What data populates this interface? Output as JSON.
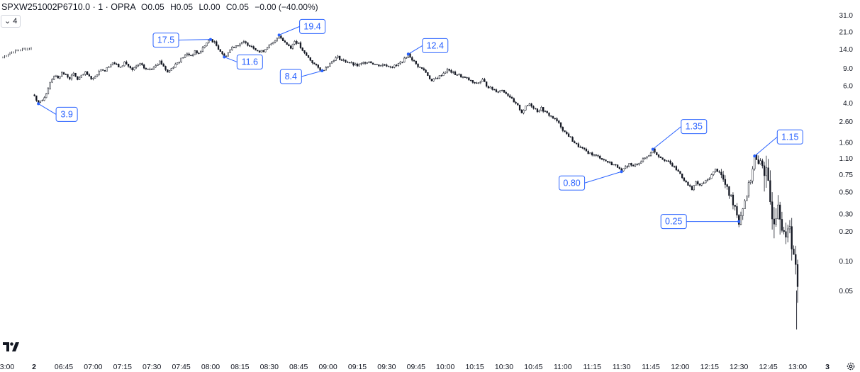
{
  "header": {
    "symbol": "SPXW251002P6710.0 · 1 · OPRA",
    "open_label": "O",
    "open": "0.05",
    "high_label": "H",
    "high": "0.05",
    "low_label": "L",
    "low": "0.00",
    "close_label": "C",
    "close": "0.05",
    "change": "−0.00 (−40.00%)"
  },
  "indicators_toggle": {
    "icon": "chevron-down-icon",
    "count": "4"
  },
  "logo": "tradingview-logo",
  "settings_icon": "gear-icon",
  "colors": {
    "candles": "#131722",
    "annotation": "#2962ff",
    "axis_text": "#131722"
  },
  "chart_data": {
    "type": "candlestick",
    "y_scale": "log",
    "ylim": [
      0.012,
      40
    ],
    "y_ticks": [
      "31.0",
      "21.0",
      "14.0",
      "9.0",
      "6.0",
      "4.0",
      "2.60",
      "1.60",
      "1.10",
      "0.75",
      "0.50",
      "0.30",
      "0.20",
      "0.10",
      "0.05"
    ],
    "y_tick_values": [
      31,
      21,
      14,
      9,
      6,
      4,
      2.6,
      1.6,
      1.1,
      0.75,
      0.5,
      0.3,
      0.2,
      0.1,
      0.05
    ],
    "x_ticks": [
      "3:00",
      "2",
      "06:45",
      "07:00",
      "07:15",
      "07:30",
      "07:45",
      "08:00",
      "08:15",
      "08:30",
      "08:45",
      "09:00",
      "09:15",
      "09:30",
      "09:45",
      "10:00",
      "10:15",
      "10:30",
      "10:45",
      "11:00",
      "11:15",
      "11:30",
      "11:45",
      "12:00",
      "12:15",
      "12:30",
      "12:45",
      "13:00",
      "3"
    ],
    "x_tick_minutes": [
      -189,
      -35,
      405,
      420,
      435,
      450,
      465,
      480,
      495,
      510,
      525,
      540,
      555,
      570,
      585,
      600,
      615,
      630,
      645,
      660,
      675,
      690,
      705,
      720,
      735,
      750,
      765,
      780,
      810
    ],
    "x_tick_bold": [
      false,
      true,
      false,
      false,
      false,
      false,
      false,
      false,
      false,
      false,
      false,
      false,
      false,
      false,
      false,
      false,
      false,
      false,
      false,
      false,
      false,
      false,
      false,
      false,
      false,
      false,
      false,
      false,
      true
    ],
    "prev_session": {
      "from_minute": -188,
      "to_minute": -180,
      "path": [
        [
          -188,
          11.5
        ],
        [
          -186,
          12.8
        ],
        [
          -184,
          13.5
        ],
        [
          -182,
          14.0
        ],
        [
          -180,
          14.2
        ]
      ]
    },
    "price_path": [
      [
        390,
        4.8
      ],
      [
        391,
        4.3
      ],
      [
        392,
        3.9
      ],
      [
        394,
        4.2
      ],
      [
        396,
        5.0
      ],
      [
        398,
        6.5
      ],
      [
        400,
        7.5
      ],
      [
        402,
        7.2
      ],
      [
        404,
        8.0
      ],
      [
        406,
        7.6
      ],
      [
        408,
        7.1
      ],
      [
        410,
        7.8
      ],
      [
        412,
        6.9
      ],
      [
        414,
        7.4
      ],
      [
        416,
        8.0
      ],
      [
        418,
        7.3
      ],
      [
        420,
        7.0
      ],
      [
        422,
        7.9
      ],
      [
        424,
        8.8
      ],
      [
        426,
        8.4
      ],
      [
        428,
        9.5
      ],
      [
        430,
        10.2
      ],
      [
        432,
        9.6
      ],
      [
        434,
        9.0
      ],
      [
        436,
        10.3
      ],
      [
        438,
        9.4
      ],
      [
        440,
        8.5
      ],
      [
        442,
        9.3
      ],
      [
        444,
        9.8
      ],
      [
        446,
        9.0
      ],
      [
        448,
        8.6
      ],
      [
        450,
        8.9
      ],
      [
        452,
        9.8
      ],
      [
        454,
        10.5
      ],
      [
        456,
        9.4
      ],
      [
        458,
        8.1
      ],
      [
        460,
        8.9
      ],
      [
        462,
        9.8
      ],
      [
        464,
        10.6
      ],
      [
        466,
        11.6
      ],
      [
        468,
        12.4
      ],
      [
        470,
        12.0
      ],
      [
        472,
        13.1
      ],
      [
        474,
        12.6
      ],
      [
        476,
        14.3
      ],
      [
        478,
        16.1
      ],
      [
        480,
        17.5
      ],
      [
        482,
        16.2
      ],
      [
        484,
        14.2
      ],
      [
        486,
        12.6
      ],
      [
        487,
        11.6
      ],
      [
        489,
        12.8
      ],
      [
        491,
        14.6
      ],
      [
        493,
        15.2
      ],
      [
        495,
        15.8
      ],
      [
        497,
        16.3
      ],
      [
        499,
        15.6
      ],
      [
        501,
        15.0
      ],
      [
        503,
        14.0
      ],
      [
        505,
        13.0
      ],
      [
        507,
        13.4
      ],
      [
        509,
        14.8
      ],
      [
        511,
        15.4
      ],
      [
        513,
        16.8
      ],
      [
        515,
        19.4
      ],
      [
        517,
        17.2
      ],
      [
        519,
        15.6
      ],
      [
        521,
        14.6
      ],
      [
        523,
        16.8
      ],
      [
        525,
        15.8
      ],
      [
        527,
        13.2
      ],
      [
        529,
        12.0
      ],
      [
        531,
        10.8
      ],
      [
        533,
        9.8
      ],
      [
        535,
        9.0
      ],
      [
        537,
        8.4
      ],
      [
        539,
        9.2
      ],
      [
        541,
        10.0
      ],
      [
        543,
        11.0
      ],
      [
        545,
        11.6
      ],
      [
        547,
        10.8
      ],
      [
        549,
        10.5
      ],
      [
        551,
        10.2
      ],
      [
        553,
        9.7
      ],
      [
        555,
        9.5
      ],
      [
        557,
        9.8
      ],
      [
        559,
        10.3
      ],
      [
        561,
        10.5
      ],
      [
        563,
        10.0
      ],
      [
        565,
        9.6
      ],
      [
        567,
        9.6
      ],
      [
        569,
        9.7
      ],
      [
        571,
        9.4
      ],
      [
        573,
        9.3
      ],
      [
        575,
        9.5
      ],
      [
        577,
        10.2
      ],
      [
        579,
        11.0
      ],
      [
        581,
        12.4
      ],
      [
        583,
        11.0
      ],
      [
        585,
        9.8
      ],
      [
        587,
        9.0
      ],
      [
        589,
        8.6
      ],
      [
        591,
        7.6
      ],
      [
        593,
        6.6
      ],
      [
        595,
        7.0
      ],
      [
        597,
        7.4
      ],
      [
        599,
        8.0
      ],
      [
        601,
        8.6
      ],
      [
        603,
        8.2
      ],
      [
        605,
        7.8
      ],
      [
        607,
        7.6
      ],
      [
        609,
        7.2
      ],
      [
        611,
        7.0
      ],
      [
        613,
        6.6
      ],
      [
        615,
        6.2
      ],
      [
        617,
        6.4
      ],
      [
        619,
        6.8
      ],
      [
        621,
        6.0
      ],
      [
        623,
        5.6
      ],
      [
        625,
        5.4
      ],
      [
        627,
        5.2
      ],
      [
        629,
        5.4
      ],
      [
        631,
        5.0
      ],
      [
        633,
        4.6
      ],
      [
        635,
        4.0
      ],
      [
        637,
        3.7
      ],
      [
        639,
        3.2
      ],
      [
        641,
        3.6
      ],
      [
        643,
        3.9
      ],
      [
        645,
        3.6
      ],
      [
        647,
        3.3
      ],
      [
        649,
        3.5
      ],
      [
        651,
        3.2
      ],
      [
        653,
        3.0
      ],
      [
        655,
        2.8
      ],
      [
        657,
        2.6
      ],
      [
        659,
        2.3
      ],
      [
        661,
        2.0
      ],
      [
        663,
        1.85
      ],
      [
        665,
        1.65
      ],
      [
        667,
        1.5
      ],
      [
        669,
        1.4
      ],
      [
        671,
        1.32
      ],
      [
        673,
        1.25
      ],
      [
        675,
        1.2
      ],
      [
        677,
        1.15
      ],
      [
        679,
        1.12
      ],
      [
        681,
        1.05
      ],
      [
        683,
        1.0
      ],
      [
        685,
        0.96
      ],
      [
        687,
        0.92
      ],
      [
        689,
        0.88
      ],
      [
        690,
        0.8
      ],
      [
        692,
        0.88
      ],
      [
        694,
        0.96
      ],
      [
        696,
        0.9
      ],
      [
        698,
        0.97
      ],
      [
        700,
        1.02
      ],
      [
        702,
        1.1
      ],
      [
        704,
        1.18
      ],
      [
        706,
        1.35
      ],
      [
        708,
        1.2
      ],
      [
        710,
        1.12
      ],
      [
        712,
        1.06
      ],
      [
        714,
        1.0
      ],
      [
        716,
        0.92
      ],
      [
        718,
        0.84
      ],
      [
        720,
        0.76
      ],
      [
        722,
        0.66
      ],
      [
        724,
        0.58
      ],
      [
        726,
        0.54
      ],
      [
        728,
        0.62
      ],
      [
        730,
        0.58
      ],
      [
        732,
        0.62
      ],
      [
        734,
        0.66
      ],
      [
        736,
        0.74
      ],
      [
        738,
        0.84
      ],
      [
        740,
        0.8
      ],
      [
        742,
        0.66
      ],
      [
        744,
        0.52
      ],
      [
        746,
        0.44
      ],
      [
        748,
        0.36
      ],
      [
        750,
        0.25
      ],
      [
        752,
        0.35
      ],
      [
        754,
        0.48
      ],
      [
        756,
        0.68
      ],
      [
        758,
        1.15
      ],
      [
        760,
        0.9
      ],
      [
        762,
        1.1
      ],
      [
        764,
        0.7
      ],
      [
        766,
        0.4
      ],
      [
        768,
        0.3
      ],
      [
        770,
        0.45
      ],
      [
        772,
        0.28
      ],
      [
        774,
        0.14
      ],
      [
        776,
        0.25
      ],
      [
        778,
        0.12
      ],
      [
        780,
        0.05
      ]
    ],
    "annotations": [
      {
        "label": "3.9",
        "minute": 392,
        "price": 3.9
      },
      {
        "label": "17.5",
        "minute": 480,
        "price": 17.5
      },
      {
        "label": "11.6",
        "minute": 487,
        "price": 11.6
      },
      {
        "label": "19.4",
        "minute": 515,
        "price": 19.4
      },
      {
        "label": "8.4",
        "minute": 537,
        "price": 8.4
      },
      {
        "label": "12.4",
        "minute": 581,
        "price": 12.4
      },
      {
        "label": "1.35",
        "minute": 706,
        "price": 1.35
      },
      {
        "label": "0.80",
        "minute": 690,
        "price": 0.8
      },
      {
        "label": "0.25",
        "minute": 750,
        "price": 0.25
      },
      {
        "label": "1.15",
        "minute": 758,
        "price": 1.15
      }
    ]
  }
}
